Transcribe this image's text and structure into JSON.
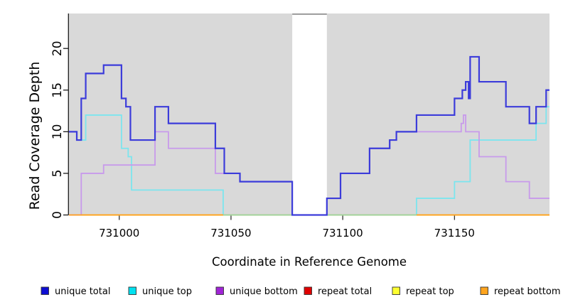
{
  "axes": {
    "x_title": "Coordinate in Reference Genome",
    "y_title": "Read Coverage Depth",
    "x_tick_labels": [
      "731000",
      "731050",
      "731100",
      "731150"
    ],
    "y_tick_labels": [
      "0",
      "5",
      "10",
      "15",
      "20"
    ]
  },
  "legend": {
    "items": [
      {
        "label": "unique total",
        "color": "#0d0dd2"
      },
      {
        "label": "unique top",
        "color": "#00e1f0"
      },
      {
        "label": "unique bottom",
        "color": "#a024d6"
      },
      {
        "label": "repeat total",
        "color": "#e00000"
      },
      {
        "label": "repeat top",
        "color": "#fdff30"
      },
      {
        "label": "repeat bottom",
        "color": "#ffa41e"
      }
    ]
  },
  "chart_data": {
    "type": "line",
    "style": "step",
    "title": "",
    "xlabel": "Coordinate in Reference Genome",
    "ylabel": "Read Coverage Depth",
    "xlim": [
      730977.5,
      731192.5
    ],
    "ylim": [
      0,
      24.2
    ],
    "x_ticks": [
      731000,
      731050,
      731100,
      731150
    ],
    "y_ticks": [
      0,
      5,
      10,
      15,
      20
    ],
    "grid": false,
    "legend_position": "bottom",
    "plot_background": "#d9d9d9",
    "gap_region": {
      "from": 731077.4,
      "to": 731092.9,
      "top_border_color": "#8f8f8f"
    },
    "baseline_overlap_segment": {
      "color": "#9bd6a4",
      "from": 731046.5,
      "to": 731133,
      "value": 0
    },
    "series": [
      {
        "name": "unique total",
        "color": "#3c3cda",
        "steps": [
          [
            730977.5,
            10
          ],
          [
            730981,
            9
          ],
          [
            730983,
            14
          ],
          [
            730985,
            17
          ],
          [
            730993,
            18
          ],
          [
            731001,
            14
          ],
          [
            731003,
            13
          ],
          [
            731005,
            9
          ],
          [
            731016,
            13
          ],
          [
            731022,
            11
          ],
          [
            731043,
            8
          ],
          [
            731047,
            5
          ],
          [
            731054,
            4
          ],
          [
            731077.4,
            0
          ],
          [
            731092.9,
            2
          ],
          [
            731099,
            5
          ],
          [
            731112,
            8
          ],
          [
            731121,
            9
          ],
          [
            731124,
            10
          ],
          [
            731133,
            12
          ],
          [
            731150,
            14
          ],
          [
            731153.5,
            15
          ],
          [
            731155,
            16
          ],
          [
            731156.3,
            14
          ],
          [
            731157,
            19
          ],
          [
            731161,
            16
          ],
          [
            731173,
            13
          ],
          [
            731183.5,
            11
          ],
          [
            731186.5,
            13
          ],
          [
            731191,
            15
          ]
        ]
      },
      {
        "name": "unique top",
        "color": "#7ce5ee",
        "steps": [
          [
            730977.5,
            10
          ],
          [
            730981,
            9
          ],
          [
            730985,
            12
          ],
          [
            731001,
            8
          ],
          [
            731004,
            7
          ],
          [
            731005.5,
            3
          ],
          [
            731046.5,
            0
          ],
          [
            731133,
            2
          ],
          [
            731150,
            4
          ],
          [
            731157,
            9
          ],
          [
            731186.5,
            11
          ],
          [
            731191,
            13
          ]
        ]
      },
      {
        "name": "unique bottom",
        "color": "#c89aeb",
        "steps": [
          [
            730977.5,
            0
          ],
          [
            730983,
            5
          ],
          [
            730993,
            6
          ],
          [
            731016,
            10
          ],
          [
            731022,
            8
          ],
          [
            731043,
            5
          ],
          [
            731054,
            4
          ],
          [
            731077.4,
            0
          ],
          [
            731092.9,
            2
          ],
          [
            731099,
            5
          ],
          [
            731112,
            8
          ],
          [
            731121,
            9
          ],
          [
            731124,
            10
          ],
          [
            731153,
            11
          ],
          [
            731154,
            12
          ],
          [
            731155,
            10
          ],
          [
            731161,
            7
          ],
          [
            731173,
            4
          ],
          [
            731183.5,
            2
          ]
        ]
      },
      {
        "name": "repeat total",
        "color": "#e00000",
        "steps": [
          [
            730977.5,
            0
          ]
        ]
      },
      {
        "name": "repeat top",
        "color": "#fdff30",
        "steps": [
          [
            730977.5,
            0
          ]
        ]
      },
      {
        "name": "repeat bottom",
        "color": "#ff9f1f",
        "steps": [
          [
            730977.5,
            0
          ]
        ]
      }
    ]
  }
}
